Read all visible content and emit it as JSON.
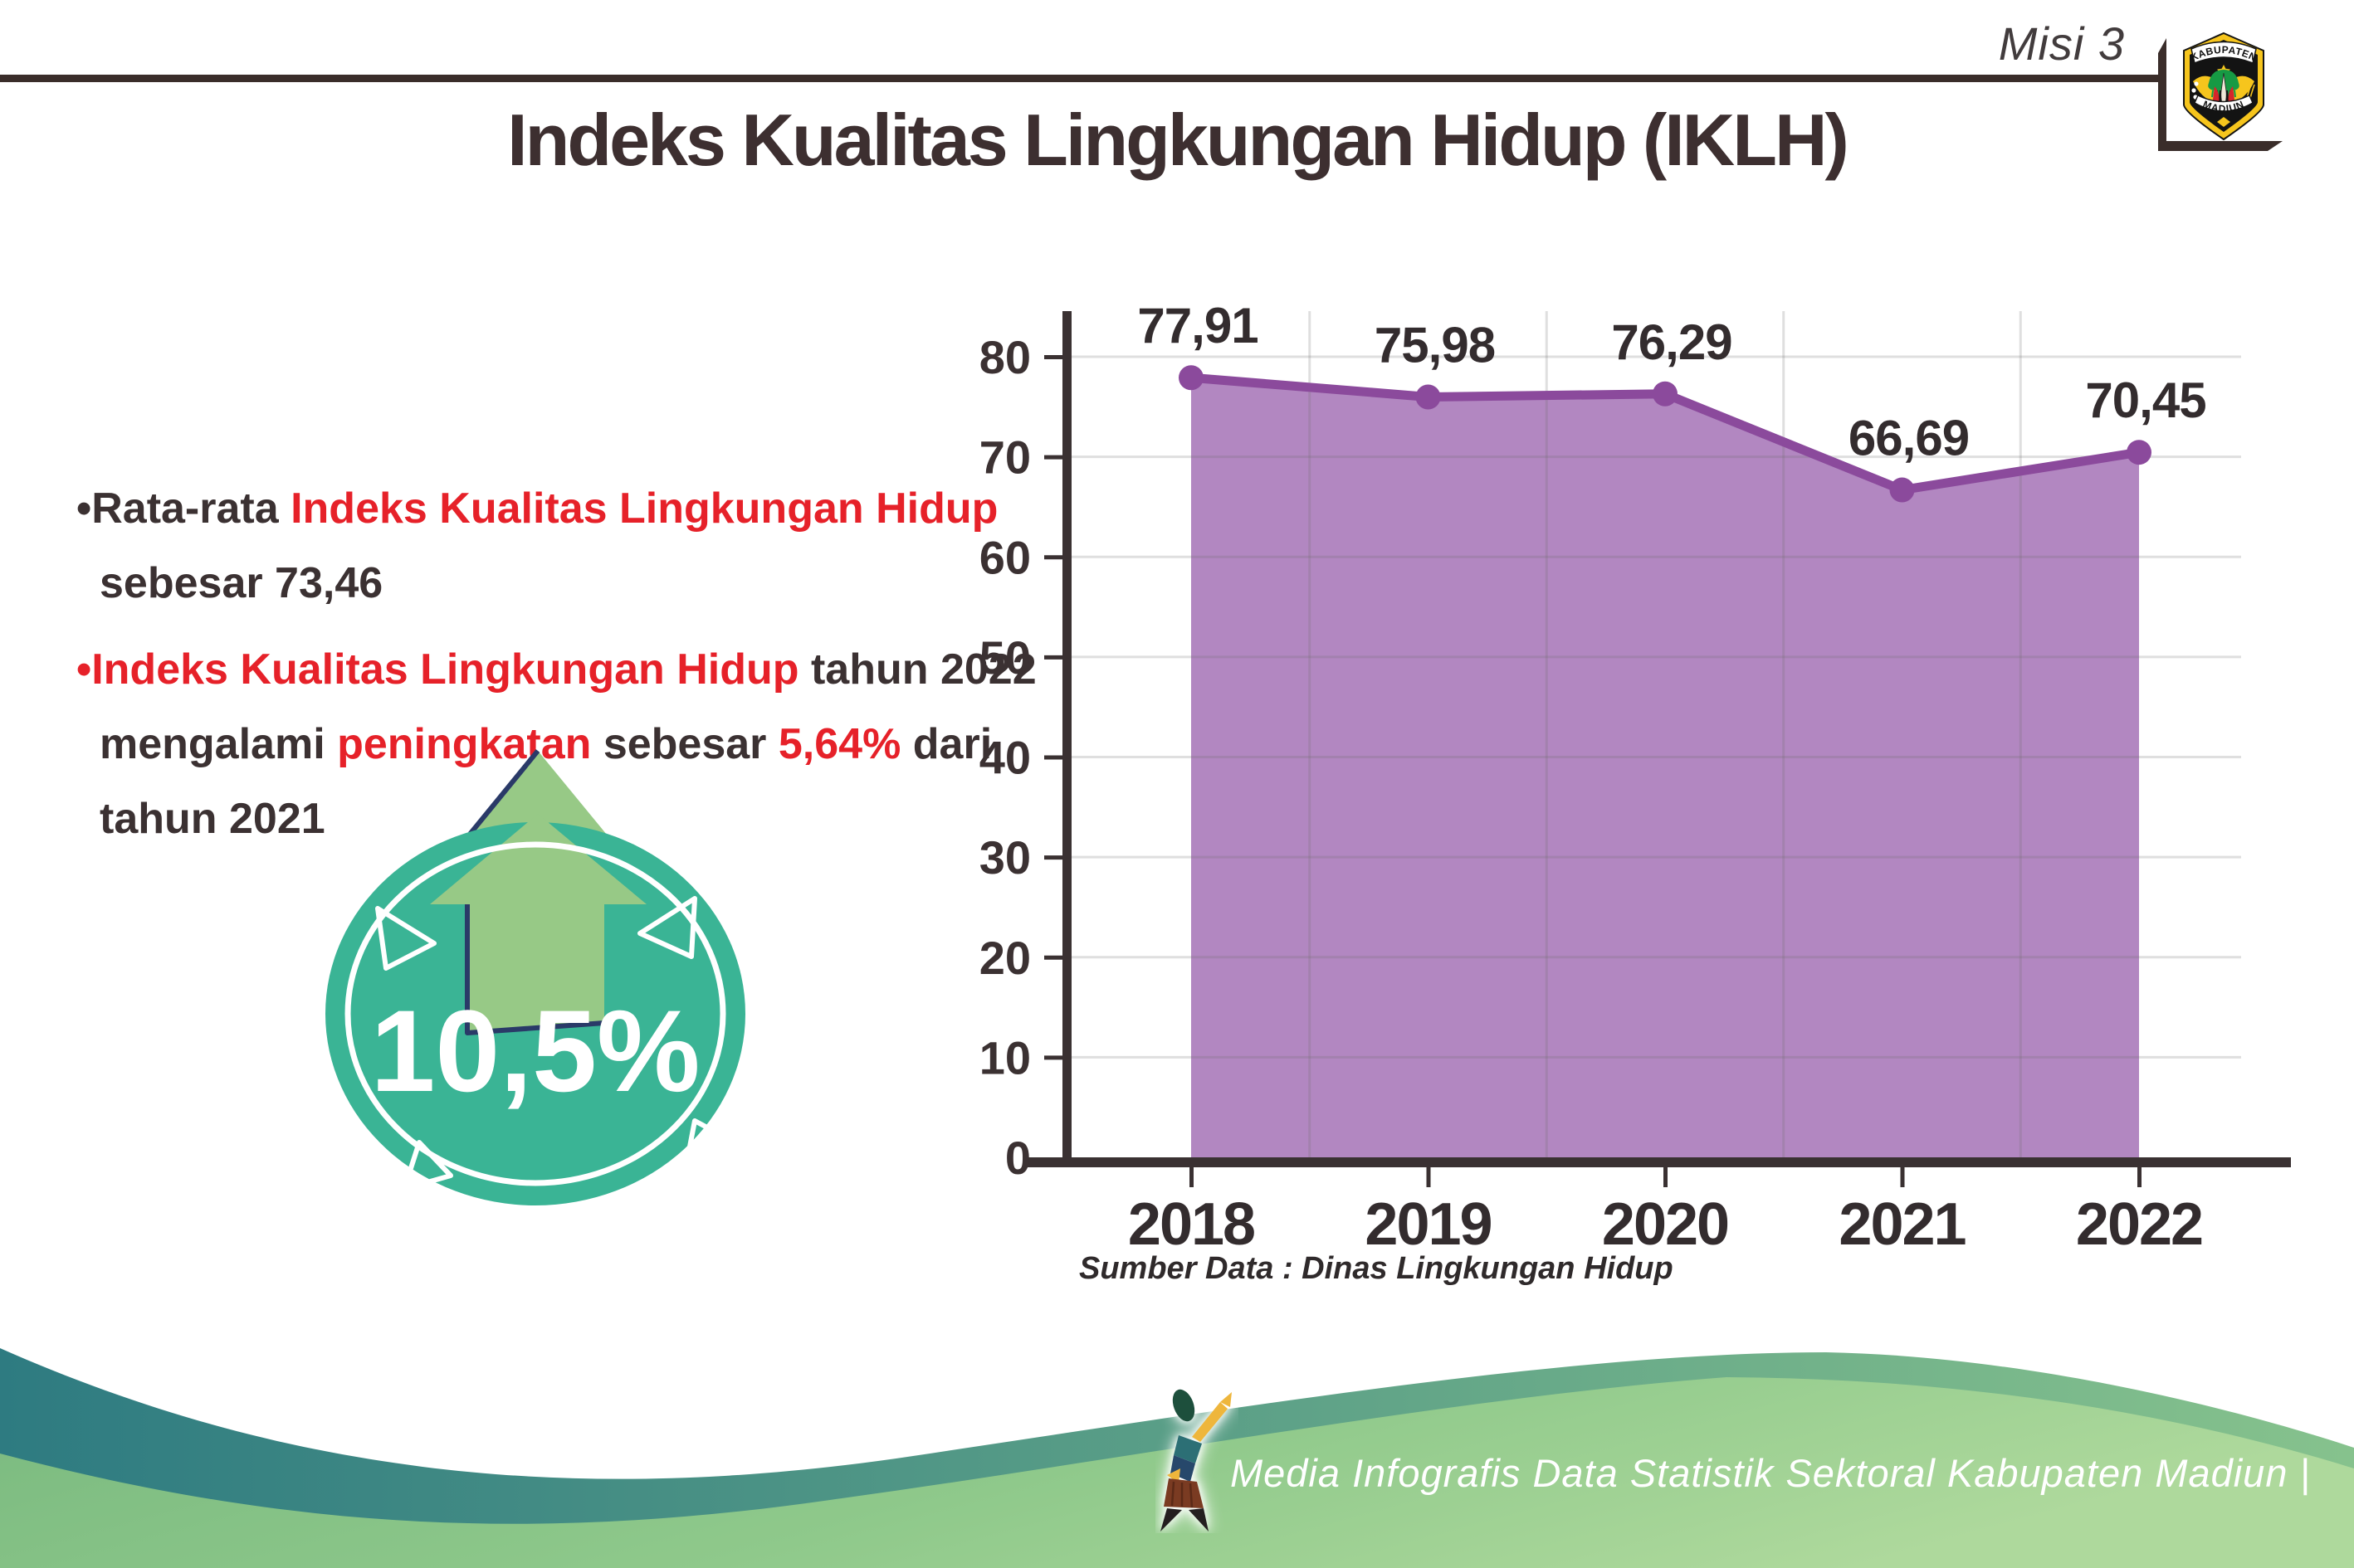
{
  "header": {
    "misi_label": "Misi 3",
    "title": "Indeks Kualitas Lingkungan Hidup (IKLH)",
    "logo": {
      "top_text": "KABUPATEN",
      "bottom_text": "MADIUN"
    }
  },
  "bullets": [
    {
      "lines": [
        [
          {
            "t": "Rata-rata ",
            "c": "dark"
          },
          {
            "t": "Indeks Kualitas Lingkungan Hidup",
            "c": "red"
          }
        ],
        [
          {
            "t": "sebesar 73,46",
            "c": "dark"
          }
        ]
      ]
    },
    {
      "lines": [
        [
          {
            "t": "Indeks Kualitas Lingkungan Hidup",
            "c": "red"
          },
          {
            "t": " tahun 2022",
            "c": "dark"
          }
        ],
        [
          {
            "t": "mengalami ",
            "c": "dark"
          },
          {
            "t": "peningkatan",
            "c": "red"
          },
          {
            "t": " sebesar ",
            "c": "dark"
          },
          {
            "t": "5,64%",
            "c": "red"
          },
          {
            "t": " dari",
            "c": "dark"
          }
        ],
        [
          {
            "t": "tahun 2021",
            "c": "dark"
          }
        ]
      ]
    }
  ],
  "badge": {
    "value": "10,5%"
  },
  "chart_data": {
    "type": "area",
    "title": "",
    "categories": [
      "2018",
      "2019",
      "2020",
      "2021",
      "2022"
    ],
    "values": [
      77.91,
      75.98,
      76.29,
      66.69,
      70.45
    ],
    "data_labels": [
      "77,91",
      "75,98",
      "76,29",
      "66,69",
      "70,45"
    ],
    "series_name": "IKLH",
    "xlabel": "",
    "ylabel": "",
    "ylim": [
      0,
      80
    ],
    "ytick_step": 10,
    "ytick_labels": [
      "0",
      "10",
      "20",
      "30",
      "40",
      "50",
      "60",
      "70",
      "80"
    ],
    "grid": true,
    "legend": false,
    "line_color": "#8b4a9c",
    "fill_color": "#b287c1",
    "marker_color": "#8b4a9c"
  },
  "source_note": "Sumber Data : Dinas Lingkungan Hidup",
  "footer": {
    "text": "Media Infografis Data Statistik Sektoral Kabupaten Madiun |"
  },
  "colors": {
    "red_text": "#e62129",
    "dark_text": "#3b3132",
    "title_text": "#3d2f30",
    "axis": "#3a3132",
    "badge_teal": "#3ab495",
    "arrow_green": "#97c986",
    "arrow_outline": "#2a3a68",
    "wave_teal_left": "#2e7b81",
    "wave_teal_right": "#86c28d",
    "wave_green_left": "#79b97f",
    "wave_green_right": "#aed99c",
    "frame": "#3a2d2a"
  }
}
